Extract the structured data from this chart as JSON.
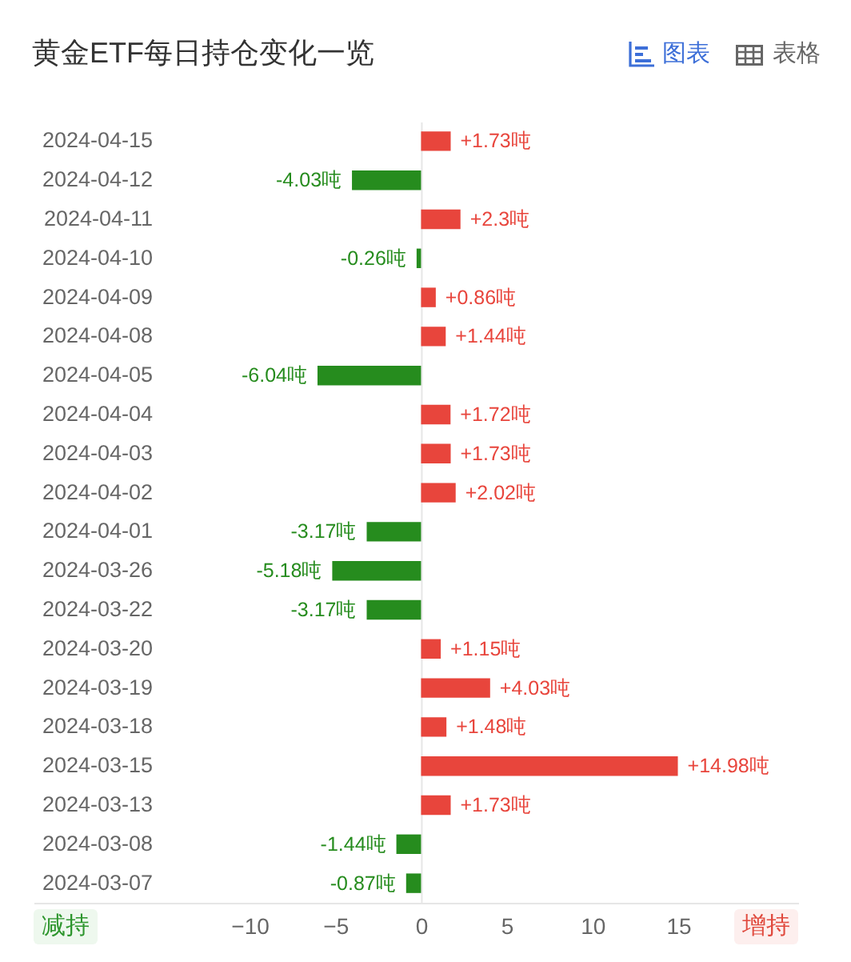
{
  "chart_data": {
    "type": "bar",
    "orientation": "horizontal",
    "title": "黄金ETF每日持仓变化一览",
    "categories": [
      "2024-04-15",
      "2024-04-12",
      "2024-04-11",
      "2024-04-10",
      "2024-04-09",
      "2024-04-08",
      "2024-04-05",
      "2024-04-04",
      "2024-04-03",
      "2024-04-02",
      "2024-04-01",
      "2024-03-26",
      "2024-03-22",
      "2024-03-20",
      "2024-03-19",
      "2024-03-18",
      "2024-03-15",
      "2024-03-13",
      "2024-03-08",
      "2024-03-07"
    ],
    "values": [
      1.73,
      -4.03,
      2.3,
      -0.26,
      0.86,
      1.44,
      -6.04,
      1.72,
      1.73,
      2.02,
      -3.17,
      -5.18,
      -3.17,
      1.15,
      4.03,
      1.48,
      14.98,
      1.73,
      -1.44,
      -0.87
    ],
    "colors": [
      "#e8453c",
      "#268c1e",
      "#e8453c",
      "#268c1e",
      "#e8453c",
      "#e8453c",
      "#268c1e",
      "#e8453c",
      "#e8453c",
      "#e8453c",
      "#268c1e",
      "#268c1e",
      "#268c1e",
      "#e8453c",
      "#e8453c",
      "#e8453c",
      "#e8453c",
      "#e8453c",
      "#268c1e",
      "#268c1e"
    ],
    "value_labels": [
      "+1.73吨",
      "-4.03吨",
      "+2.3吨",
      "-0.26吨",
      "+0.86吨",
      "+1.44吨",
      "-6.04吨",
      "+1.72吨",
      "+1.73吨",
      "+2.02吨",
      "-3.17吨",
      "-5.18吨",
      "-3.17吨",
      "+1.15吨",
      "+4.03吨",
      "+1.48吨",
      "+14.98吨",
      "+1.73吨",
      "-1.44吨",
      "-0.87吨"
    ],
    "xlim": [
      -22.6,
      22
    ],
    "xticks": [
      -10,
      -5,
      0,
      5,
      10,
      15
    ],
    "annotations": [
      "图表",
      "表格",
      "减持",
      "增持"
    ]
  }
}
